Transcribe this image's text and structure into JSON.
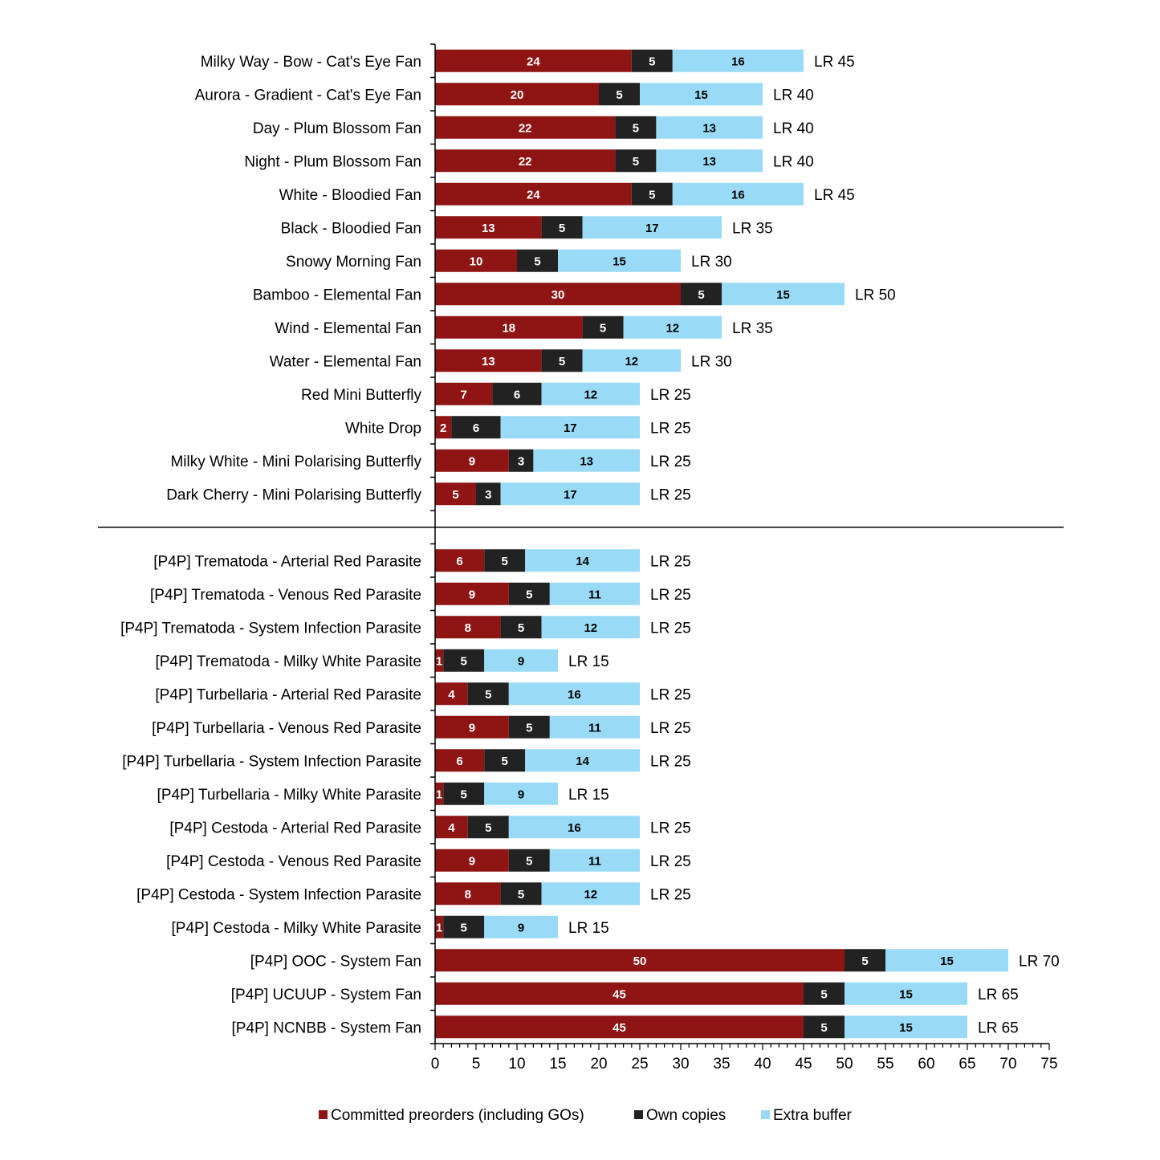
{
  "chart_data": {
    "type": "bar",
    "orientation": "horizontal",
    "stacked": true,
    "title": "",
    "xlabel": "",
    "ylabel": "",
    "xlim": [
      0,
      75
    ],
    "xticks": [
      0,
      5,
      10,
      15,
      20,
      25,
      30,
      35,
      40,
      45,
      50,
      55,
      60,
      65,
      70,
      75
    ],
    "grid": false,
    "legend_placement": "bottom",
    "colors": {
      "Committed preorders (including GOs)": "#8f1414",
      "Own copies": "#222222",
      "Extra buffer": "#99dbf6"
    },
    "separator_after_category_index": 13,
    "categories": [
      "Milky Way - Bow - Cat's Eye Fan",
      "Aurora - Gradient - Cat's Eye Fan",
      "Day - Plum Blossom Fan",
      "Night - Plum Blossom Fan",
      "White - Bloodied Fan",
      "Black - Bloodied Fan",
      "Snowy Morning Fan",
      "Bamboo - Elemental Fan",
      "Wind - Elemental Fan",
      "Water - Elemental Fan",
      "Red Mini Butterfly",
      "White Drop",
      "Milky White - Mini Polarising Butterfly",
      "Dark Cherry - Mini Polarising Butterfly",
      "[P4P] Trematoda - Arterial Red Parasite",
      "[P4P] Trematoda - Venous Red Parasite",
      "[P4P] Trematoda - System Infection Parasite",
      "[P4P] Trematoda - Milky White Parasite",
      "[P4P] Turbellaria - Arterial Red Parasite",
      "[P4P] Turbellaria - Venous Red Parasite",
      "[P4P] Turbellaria - System Infection Parasite",
      "[P4P] Turbellaria - Milky White Parasite",
      "[P4P] Cestoda - Arterial Red Parasite",
      "[P4P] Cestoda - Venous Red Parasite",
      "[P4P] Cestoda - System Infection Parasite",
      "[P4P] Cestoda - Milky White Parasite",
      "[P4P] OOC - System Fan",
      "[P4P] UCUUP - System Fan",
      "[P4P] NCNBB - System Fan"
    ],
    "series": [
      {
        "name": "Committed preorders (including GOs)",
        "values": [
          24,
          20,
          22,
          22,
          24,
          13,
          10,
          30,
          18,
          13,
          7,
          2,
          9,
          5,
          6,
          9,
          8,
          1,
          4,
          9,
          6,
          1,
          4,
          9,
          8,
          1,
          50,
          45,
          45
        ]
      },
      {
        "name": "Own copies",
        "values": [
          5,
          5,
          5,
          5,
          5,
          5,
          5,
          5,
          5,
          5,
          6,
          6,
          3,
          3,
          5,
          5,
          5,
          5,
          5,
          5,
          5,
          5,
          5,
          5,
          5,
          5,
          5,
          5,
          5
        ]
      },
      {
        "name": "Extra buffer",
        "values": [
          16,
          15,
          13,
          13,
          16,
          17,
          15,
          15,
          12,
          12,
          12,
          17,
          13,
          17,
          14,
          11,
          12,
          9,
          16,
          11,
          14,
          9,
          16,
          11,
          12,
          9,
          15,
          15,
          15
        ]
      }
    ],
    "total_labels": [
      "LR 45",
      "LR 40",
      "LR 40",
      "LR 40",
      "LR 45",
      "LR 35",
      "LR 30",
      "LR 50",
      "LR 35",
      "LR 30",
      "LR 25",
      "LR 25",
      "LR 25",
      "LR 25",
      "LR 25",
      "LR 25",
      "LR 25",
      "LR 15",
      "LR 25",
      "LR 25",
      "LR 25",
      "LR 15",
      "LR 25",
      "LR 25",
      "LR 25",
      "LR 15",
      "LR 70",
      "LR 65",
      "LR 65"
    ]
  }
}
